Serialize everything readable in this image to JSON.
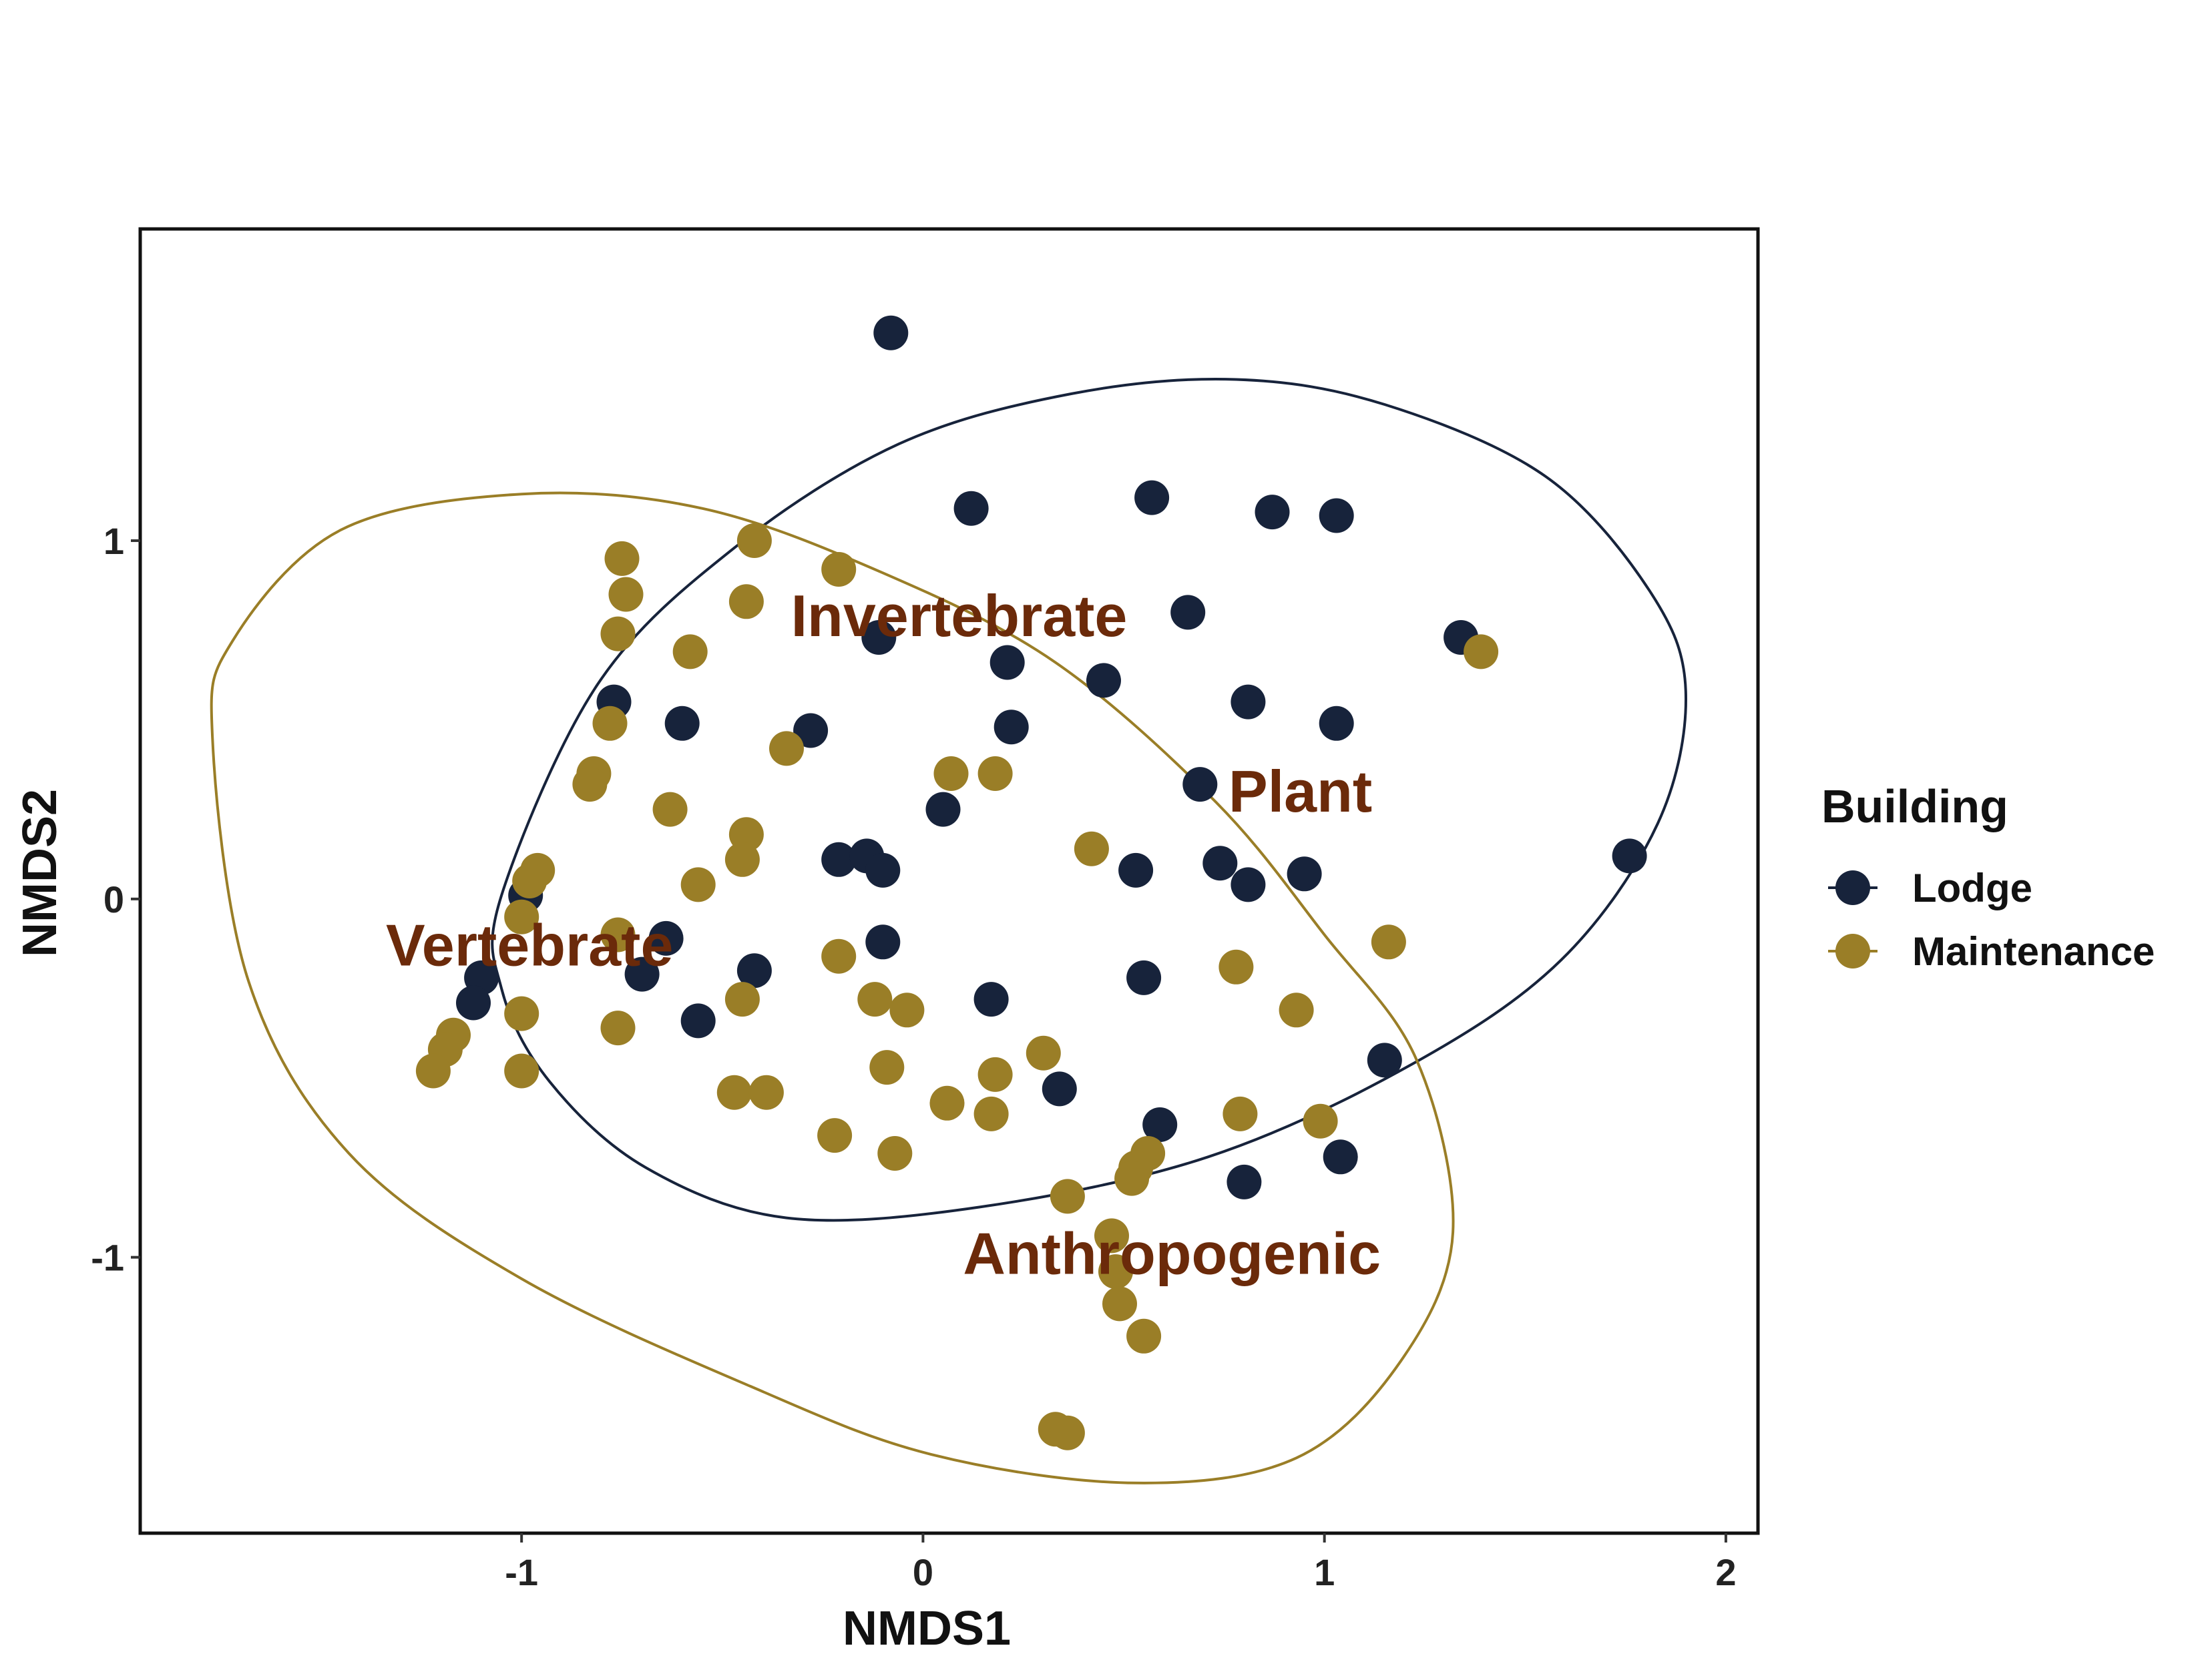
{
  "chart_data": {
    "type": "scatter",
    "title": "",
    "xlabel": "NMDS1",
    "ylabel": "NMDS2",
    "xlim": [
      -1.95,
      2.08
    ],
    "ylim": [
      -1.77,
      1.87
    ],
    "xticks": [
      -1,
      0,
      1,
      2
    ],
    "xtick_labels": [
      "-1",
      "0",
      "1",
      "2"
    ],
    "yticks": [
      -1,
      0,
      1
    ],
    "ytick_labels": [
      "-1",
      "0",
      "1"
    ],
    "grid": false,
    "legend": {
      "title": "Building",
      "position": "right",
      "entries": [
        "Lodge",
        "Maintenance"
      ]
    },
    "series": [
      {
        "name": "Lodge",
        "color": "#17233b",
        "points": [
          [
            -0.08,
            1.58
          ],
          [
            0.12,
            1.09
          ],
          [
            0.57,
            1.12
          ],
          [
            0.87,
            1.08
          ],
          [
            1.03,
            1.07
          ],
          [
            0.66,
            0.8
          ],
          [
            1.34,
            0.73
          ],
          [
            -0.11,
            0.73
          ],
          [
            0.21,
            0.66
          ],
          [
            0.45,
            0.61
          ],
          [
            -0.77,
            0.55
          ],
          [
            0.81,
            0.55
          ],
          [
            -0.6,
            0.49
          ],
          [
            0.22,
            0.48
          ],
          [
            1.03,
            0.49
          ],
          [
            -0.28,
            0.47
          ],
          [
            0.69,
            0.32
          ],
          [
            0.05,
            0.25
          ],
          [
            1.76,
            0.12
          ],
          [
            -0.21,
            0.11
          ],
          [
            -0.14,
            0.12
          ],
          [
            -0.1,
            0.08
          ],
          [
            0.53,
            0.08
          ],
          [
            0.74,
            0.1
          ],
          [
            0.81,
            0.04
          ],
          [
            0.95,
            0.07
          ],
          [
            -0.99,
            0.01
          ],
          [
            -0.64,
            -0.11
          ],
          [
            -0.1,
            -0.12
          ],
          [
            -1.1,
            -0.22
          ],
          [
            -0.7,
            -0.21
          ],
          [
            -0.42,
            -0.2
          ],
          [
            0.55,
            -0.22
          ],
          [
            -1.12,
            -0.29
          ],
          [
            0.17,
            -0.28
          ],
          [
            -0.56,
            -0.34
          ],
          [
            1.15,
            -0.45
          ],
          [
            0.34,
            -0.53
          ],
          [
            0.59,
            -0.63
          ],
          [
            1.04,
            -0.72
          ],
          [
            0.8,
            -0.79
          ]
        ]
      },
      {
        "name": "Maintenance",
        "color": "#9a7e27",
        "points": [
          [
            -0.42,
            1.0
          ],
          [
            -0.75,
            0.95
          ],
          [
            -0.21,
            0.92
          ],
          [
            -0.74,
            0.85
          ],
          [
            -0.44,
            0.83
          ],
          [
            -0.76,
            0.74
          ],
          [
            -0.58,
            0.69
          ],
          [
            1.39,
            0.69
          ],
          [
            -0.78,
            0.49
          ],
          [
            -0.34,
            0.42
          ],
          [
            -0.82,
            0.35
          ],
          [
            -0.83,
            0.32
          ],
          [
            0.07,
            0.35
          ],
          [
            0.18,
            0.35
          ],
          [
            -0.63,
            0.25
          ],
          [
            -0.44,
            0.18
          ],
          [
            -0.45,
            0.11
          ],
          [
            0.42,
            0.14
          ],
          [
            -0.96,
            0.08
          ],
          [
            -0.98,
            0.05
          ],
          [
            -0.56,
            0.04
          ],
          [
            -1.0,
            -0.05
          ],
          [
            -0.76,
            -0.1
          ],
          [
            1.16,
            -0.12
          ],
          [
            -0.21,
            -0.16
          ],
          [
            0.78,
            -0.19
          ],
          [
            -0.45,
            -0.28
          ],
          [
            -0.12,
            -0.28
          ],
          [
            -0.04,
            -0.31
          ],
          [
            0.93,
            -0.31
          ],
          [
            -1.0,
            -0.32
          ],
          [
            -1.17,
            -0.38
          ],
          [
            -1.19,
            -0.42
          ],
          [
            -0.76,
            -0.36
          ],
          [
            0.3,
            -0.43
          ],
          [
            -1.22,
            -0.48
          ],
          [
            -1.0,
            -0.48
          ],
          [
            -0.09,
            -0.47
          ],
          [
            0.18,
            -0.49
          ],
          [
            -0.47,
            -0.54
          ],
          [
            -0.39,
            -0.54
          ],
          [
            0.06,
            -0.57
          ],
          [
            0.17,
            -0.6
          ],
          [
            0.79,
            -0.6
          ],
          [
            0.99,
            -0.62
          ],
          [
            -0.22,
            -0.66
          ],
          [
            -0.07,
            -0.71
          ],
          [
            0.56,
            -0.71
          ],
          [
            0.53,
            -0.75
          ],
          [
            0.52,
            -0.78
          ],
          [
            0.36,
            -0.83
          ],
          [
            0.47,
            -0.94
          ],
          [
            0.48,
            -1.04
          ],
          [
            0.49,
            -1.13
          ],
          [
            0.55,
            -1.22
          ],
          [
            0.33,
            -1.48
          ],
          [
            0.36,
            -1.49
          ]
        ]
      }
    ],
    "ellipses": [
      {
        "series": "Lodge",
        "color": "#17233b",
        "points": [
          [
            -1.05,
            0.01
          ],
          [
            -0.81,
            0.6
          ],
          [
            -0.47,
            0.98
          ],
          [
            -0.06,
            1.27
          ],
          [
            0.37,
            1.41
          ],
          [
            0.78,
            1.45
          ],
          [
            1.15,
            1.38
          ],
          [
            1.55,
            1.18
          ],
          [
            1.81,
            0.86
          ],
          [
            1.9,
            0.58
          ],
          [
            1.83,
            0.21
          ],
          [
            1.59,
            -0.17
          ],
          [
            1.22,
            -0.46
          ],
          [
            0.71,
            -0.72
          ],
          [
            0.14,
            -0.86
          ],
          [
            -0.34,
            -0.89
          ],
          [
            -0.69,
            -0.75
          ],
          [
            -0.93,
            -0.51
          ],
          [
            -1.05,
            -0.25
          ]
        ]
      },
      {
        "series": "Maintenance",
        "color": "#9a7e27",
        "points": [
          [
            -1.77,
            0.45
          ],
          [
            -1.72,
            0.72
          ],
          [
            -1.45,
            1.03
          ],
          [
            -1.0,
            1.13
          ],
          [
            -0.55,
            1.09
          ],
          [
            -0.1,
            0.91
          ],
          [
            0.33,
            0.66
          ],
          [
            0.73,
            0.27
          ],
          [
            1.0,
            -0.1
          ],
          [
            1.23,
            -0.45
          ],
          [
            1.32,
            -0.93
          ],
          [
            1.19,
            -1.29
          ],
          [
            0.93,
            -1.56
          ],
          [
            0.53,
            -1.63
          ],
          [
            0.02,
            -1.55
          ],
          [
            -0.43,
            -1.36
          ],
          [
            -1.0,
            -1.06
          ],
          [
            -1.43,
            -0.71
          ],
          [
            -1.68,
            -0.23
          ]
        ]
      }
    ],
    "annotations": [
      {
        "text": "Invertebrate",
        "x": 0.09,
        "y": 0.79,
        "color": "#6b2a0a"
      },
      {
        "text": "Plant",
        "x": 0.94,
        "y": 0.3,
        "color": "#6b2a0a"
      },
      {
        "text": "Vertebrate",
        "x": -0.98,
        "y": -0.13,
        "color": "#6b2a0a"
      },
      {
        "text": "Anthropogenic",
        "x": 0.62,
        "y": -0.99,
        "color": "#6b2a0a"
      }
    ]
  }
}
